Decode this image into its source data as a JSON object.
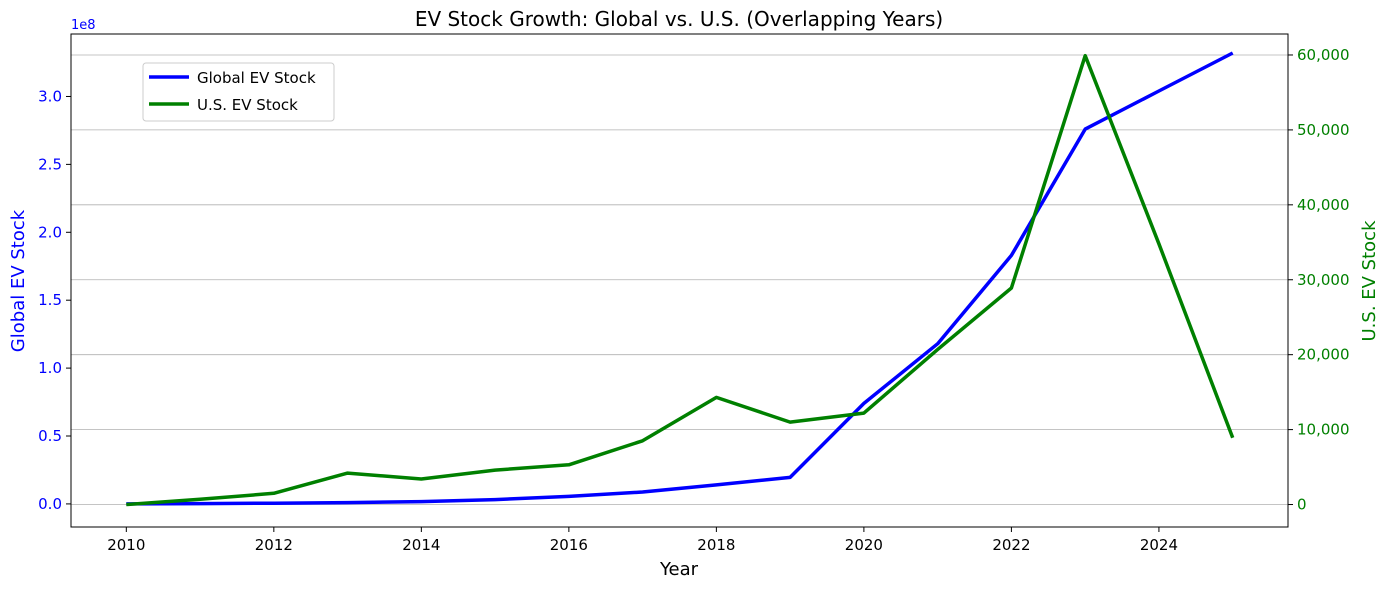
{
  "chart_data": {
    "type": "line",
    "title": "EV Stock Growth: Global vs. U.S. (Overlapping Years)",
    "xlabel": "Year",
    "ylabel_left": "Global EV Stock",
    "ylabel_right": "U.S. EV Stock",
    "left_axis_multiplier": "1e8",
    "xlim": [
      2009.25,
      2025.75
    ],
    "x_ticks": [
      2010,
      2012,
      2014,
      2016,
      2018,
      2020,
      2022,
      2024
    ],
    "ylim_left": [
      -17000000,
      346000000
    ],
    "y_ticks_left": [
      0,
      50000000,
      100000000,
      150000000,
      200000000,
      250000000,
      300000000
    ],
    "y_tick_labels_left": [
      "0.0",
      "0.5",
      "1.0",
      "1.5",
      "2.0",
      "2.5",
      "3.0"
    ],
    "ylim_right": [
      -3000,
      62800
    ],
    "y_ticks_right": [
      0,
      10000,
      20000,
      30000,
      40000,
      50000,
      60000
    ],
    "y_tick_labels_right": [
      "0",
      "10,000",
      "20,000",
      "30,000",
      "40,000",
      "50,000",
      "60,000"
    ],
    "grid": "horizontal on right axis",
    "legend_position": "upper-left",
    "series": [
      {
        "name": "Global EV Stock",
        "axis": "left",
        "color": "#0000ff",
        "x": [
          2010,
          2011,
          2012,
          2013,
          2014,
          2015,
          2016,
          2017,
          2018,
          2019,
          2020,
          2021,
          2022,
          2023,
          2024,
          2025
        ],
        "values": [
          0,
          200000,
          500000,
          1000000,
          1700000,
          3200000,
          5500000,
          8800000,
          14000000,
          19500000,
          74000000,
          118000000,
          183000000,
          276000000,
          304000000,
          332000000
        ]
      },
      {
        "name": "U.S. EV Stock",
        "axis": "right",
        "color": "#008000",
        "x": [
          2010,
          2011,
          2012,
          2013,
          2014,
          2015,
          2016,
          2017,
          2018,
          2019,
          2020,
          2021,
          2022,
          2023,
          2024,
          2025
        ],
        "values": [
          0,
          700,
          1500,
          4200,
          3400,
          4600,
          5300,
          8500,
          14300,
          11000,
          12200,
          20700,
          28900,
          59900,
          34800,
          8900
        ]
      }
    ]
  }
}
